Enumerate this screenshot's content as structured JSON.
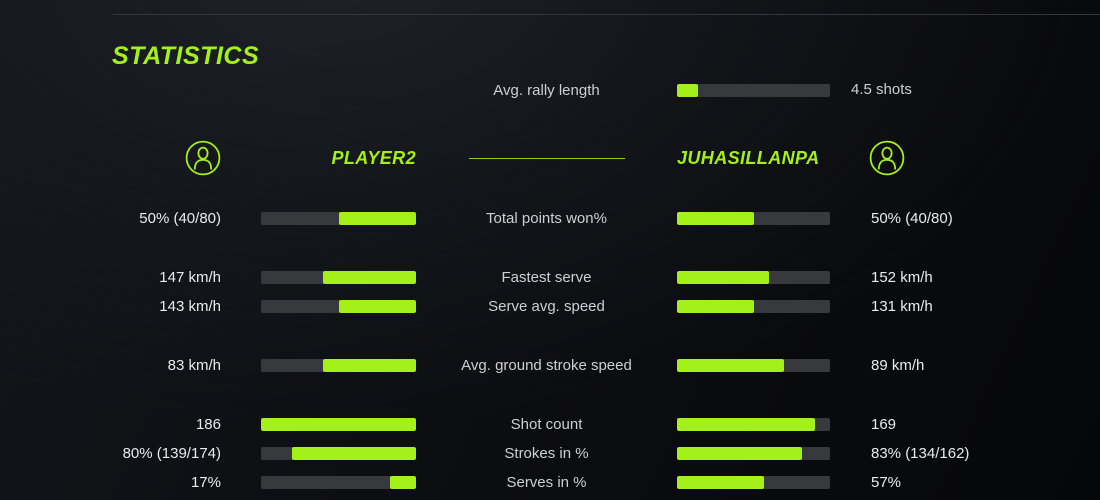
{
  "title": "STATISTICS",
  "colors": {
    "accent": "#a4f019",
    "bar_track": "#37393c",
    "value_text": "#e9ebed",
    "label_text": "#cdd0d3"
  },
  "avg_rally": {
    "label": "Avg. rally length",
    "value": "4.5 shots",
    "fill_pct": 14
  },
  "header": {
    "left_name": "PLAYER2",
    "right_name": "JUHASILLANPA",
    "left_icon": "user-icon",
    "right_icon": "user-icon"
  },
  "stats": [
    {
      "label": "Total points won%",
      "left_value": "50% (40/80)",
      "left_pct": 50,
      "right_value": "50% (40/80)",
      "right_pct": 50,
      "new_group": false
    },
    {
      "label": "Fastest serve",
      "left_value": "147 km/h",
      "left_pct": 60,
      "right_value": "152 km/h",
      "right_pct": 60,
      "new_group": true
    },
    {
      "label": "Serve avg. speed",
      "left_value": "143 km/h",
      "left_pct": 50,
      "right_value": "131 km/h",
      "right_pct": 50,
      "new_group": false
    },
    {
      "label": "Avg. ground stroke speed",
      "left_value": "83 km/h",
      "left_pct": 60,
      "right_value": "89 km/h",
      "right_pct": 70,
      "new_group": true
    },
    {
      "label": "Shot count",
      "left_value": "186",
      "left_pct": 100,
      "right_value": "169",
      "right_pct": 90,
      "new_group": true
    },
    {
      "label": "Strokes in %",
      "left_value": "80% (139/174)",
      "left_pct": 80,
      "right_value": "83% (134/162)",
      "right_pct": 82,
      "new_group": false
    },
    {
      "label": "Serves in %",
      "left_value": "17%",
      "left_pct": 17,
      "right_value": "57%",
      "right_pct": 57,
      "new_group": false
    }
  ]
}
